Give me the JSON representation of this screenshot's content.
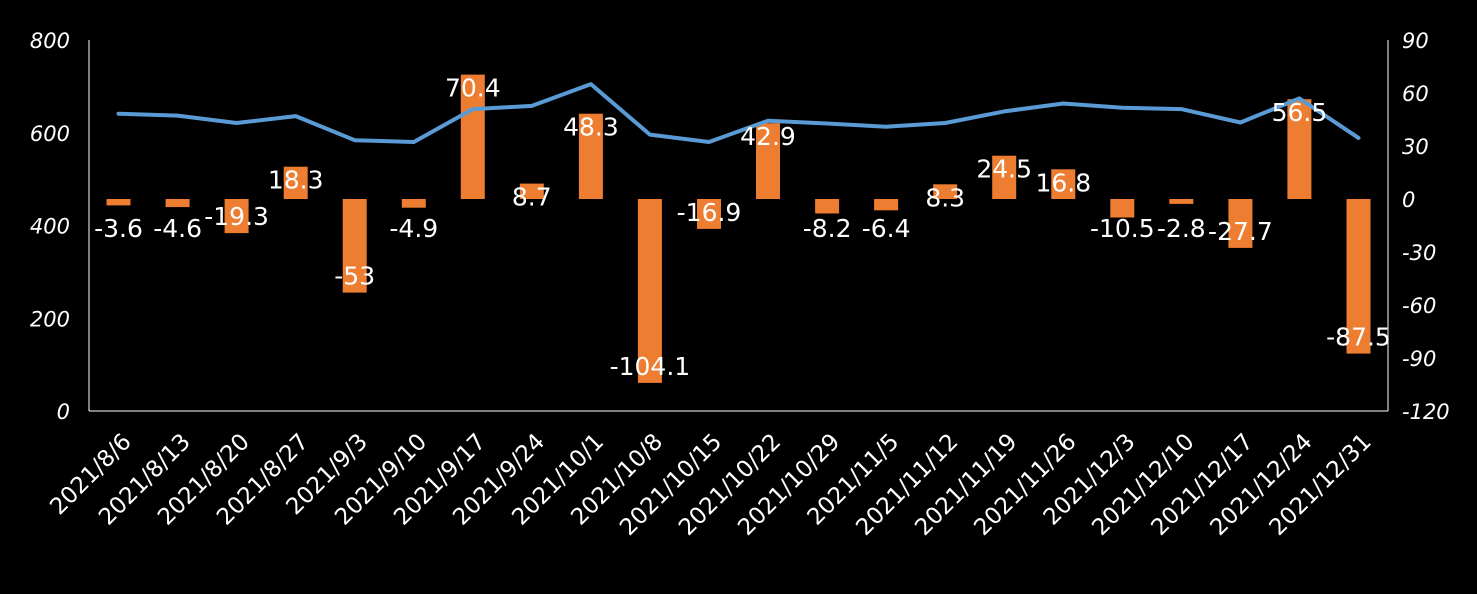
{
  "chart_data": {
    "type": "bar+line",
    "title": "",
    "categories": [
      "2021/8/6",
      "2021/8/13",
      "2021/8/20",
      "2021/8/27",
      "2021/9/3",
      "2021/9/10",
      "2021/9/17",
      "2021/9/24",
      "2021/10/1",
      "2021/10/8",
      "2021/10/15",
      "2021/10/22",
      "2021/10/29",
      "2021/11/5",
      "2021/11/12",
      "2021/11/19",
      "2021/11/26",
      "2021/12/3",
      "2021/12/10",
      "2021/12/17",
      "2021/12/24",
      "2021/12/31"
    ],
    "series": [
      {
        "name": "bar",
        "axis": "right",
        "color": "#ED7D31",
        "values": [
          -3.6,
          -4.6,
          -19.3,
          18.3,
          -53,
          -4.9,
          70.4,
          8.7,
          48.3,
          -104.1,
          -16.9,
          42.9,
          -8.2,
          -6.4,
          8.3,
          24.5,
          16.8,
          -10.5,
          -2.8,
          -27.7,
          56.5,
          -87.5
        ],
        "labels": [
          "-3.6",
          "-4.6",
          "-19.3",
          "18.3",
          "-53",
          "-4.9",
          "70.4",
          "8.7",
          "48.3",
          "-104.1",
          "-16.9",
          "42.9",
          "-8.2",
          "-6.4",
          "8.3",
          "24.5",
          "16.8",
          "-10.5",
          "-2.8",
          "-27.7",
          "56.5",
          "-87.5"
        ]
      },
      {
        "name": "line",
        "axis": "left",
        "color": "#5B9BD5",
        "values": [
          641,
          637,
          621,
          636,
          584,
          580,
          651,
          658,
          705,
          596,
          580,
          626,
          620,
          613,
          621,
          646,
          663,
          654,
          651,
          622,
          674,
          589
        ]
      }
    ],
    "y_left": {
      "min": 0,
      "max": 800,
      "ticks": [
        "0",
        "200",
        "400",
        "600",
        "800"
      ]
    },
    "y_right": {
      "min": -120,
      "max": 90,
      "ticks": [
        "-120",
        "-90",
        "-60",
        "-30",
        "0",
        "30",
        "60",
        "90"
      ]
    },
    "xlabel": "",
    "ylabel": "",
    "legend": "none",
    "grid": false
  }
}
